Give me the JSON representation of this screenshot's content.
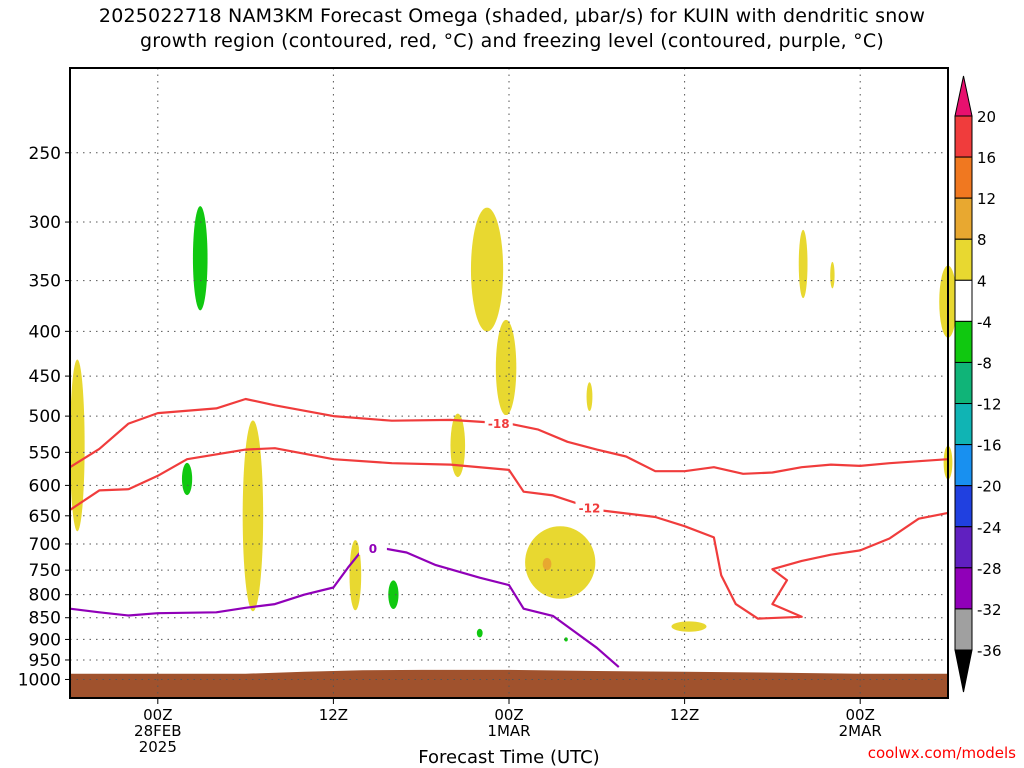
{
  "title_line1": "2025022718 NAM3KM Forecast Omega (shaded, µbar/s) for KUIN with dendritic snow",
  "title_line2": "growth region (contoured, red, °C) and freezing level (contoured, purple, °C)",
  "credit": "coolwx.com/models",
  "chart_data": {
    "type": "heatmap",
    "xlabel": "Forecast Time (UTC)",
    "x_range_hours": [
      -6,
      54
    ],
    "x_ticks": [
      {
        "hour": 0,
        "lines": [
          "00Z",
          "28FEB",
          "2025"
        ]
      },
      {
        "hour": 12,
        "lines": [
          "12Z"
        ]
      },
      {
        "hour": 24,
        "lines": [
          "00Z",
          "1MAR"
        ]
      },
      {
        "hour": 36,
        "lines": [
          "12Z"
        ]
      },
      {
        "hour": 48,
        "lines": [
          "00Z",
          "2MAR"
        ]
      }
    ],
    "y_scale": "log-pressure",
    "y_range_hpa": [
      1050,
      200
    ],
    "y_ticks": [
      250,
      300,
      350,
      400,
      450,
      500,
      550,
      600,
      650,
      700,
      750,
      800,
      850,
      900,
      950,
      1000
    ],
    "colorbar": {
      "labels": [
        "20",
        "16",
        "12",
        "8",
        "4",
        "-4",
        "-8",
        "-12",
        "-16",
        "-20",
        "-24",
        "-28",
        "-32",
        "-36"
      ],
      "colors": [
        "#e8106e",
        "#f03c3c",
        "#f07820",
        "#e8a830",
        "#e8d830",
        "#ffffff",
        "#10c810",
        "#10b478",
        "#10b4b4",
        "#1890f0",
        "#2040e0",
        "#6020c0",
        "#9000b8",
        "#a0a0a0",
        "#000000"
      ]
    },
    "contours": [
      {
        "label": "-18",
        "color": "#f03c3c",
        "label_hour": 23.3,
        "points": [
          [
            -6,
            572
          ],
          [
            -4,
            545
          ],
          [
            -2,
            510
          ],
          [
            0,
            496
          ],
          [
            4,
            490
          ],
          [
            6,
            478
          ],
          [
            8,
            486
          ],
          [
            12,
            500
          ],
          [
            16,
            506
          ],
          [
            20,
            505
          ],
          [
            24,
            510
          ],
          [
            26,
            518
          ],
          [
            28,
            535
          ],
          [
            30,
            546
          ],
          [
            32,
            556
          ],
          [
            34,
            578
          ],
          [
            36,
            578
          ],
          [
            38,
            572
          ],
          [
            40,
            582
          ],
          [
            42,
            580
          ],
          [
            44,
            572
          ],
          [
            46,
            568
          ],
          [
            48,
            570
          ],
          [
            50,
            566
          ],
          [
            54,
            560
          ]
        ]
      },
      {
        "label": "-12",
        "color": "#f03c3c",
        "label_hour": 29.5,
        "points": [
          [
            -6,
            640
          ],
          [
            -4,
            608
          ],
          [
            -2,
            606
          ],
          [
            0,
            585
          ],
          [
            2,
            560
          ],
          [
            6,
            546
          ],
          [
            8,
            544
          ],
          [
            12,
            560
          ],
          [
            16,
            566
          ],
          [
            20,
            568
          ],
          [
            24,
            576
          ],
          [
            25,
            610
          ],
          [
            27,
            616
          ],
          [
            30,
            640
          ],
          [
            34,
            652
          ],
          [
            36,
            668
          ],
          [
            38,
            688
          ],
          [
            38.5,
            760
          ],
          [
            39.5,
            820
          ],
          [
            41,
            852
          ],
          [
            44,
            848
          ],
          [
            42,
            820
          ],
          [
            43,
            770
          ],
          [
            42,
            748
          ],
          [
            44,
            732
          ],
          [
            46,
            720
          ],
          [
            48,
            712
          ],
          [
            50,
            690
          ],
          [
            52,
            655
          ],
          [
            54,
            645
          ]
        ]
      },
      {
        "label": "0",
        "color": "#9000b8",
        "label_hour": 14.7,
        "points": [
          [
            -6,
            830
          ],
          [
            -4,
            838
          ],
          [
            -2,
            845
          ],
          [
            0,
            840
          ],
          [
            4,
            838
          ],
          [
            6,
            828
          ],
          [
            8,
            820
          ],
          [
            10,
            800
          ],
          [
            12,
            785
          ],
          [
            13,
            745
          ],
          [
            14,
            710
          ],
          [
            15,
            706
          ],
          [
            17,
            716
          ],
          [
            19,
            740
          ],
          [
            22,
            765
          ],
          [
            24,
            780
          ],
          [
            25,
            830
          ],
          [
            27,
            846
          ],
          [
            30,
            920
          ],
          [
            31.5,
            968
          ]
        ]
      }
    ],
    "omega_regions": [
      {
        "value": 5,
        "center": [
          -5.5,
          540
        ],
        "rx_hours": 0.5,
        "ry_hpa": 120
      },
      {
        "value": 5,
        "center": [
          6.5,
          650
        ],
        "rx_hours": 0.7,
        "ry_hpa": 160
      },
      {
        "value": 5,
        "center": [
          13.5,
          760
        ],
        "rx_hours": 0.4,
        "ry_hpa": 70
      },
      {
        "value": 5,
        "center": [
          20.5,
          540
        ],
        "rx_hours": 0.5,
        "ry_hpa": 45
      },
      {
        "value": 5,
        "center": [
          22.5,
          340
        ],
        "rx_hours": 1.1,
        "ry_hpa": 55
      },
      {
        "value": 5,
        "center": [
          23.8,
          440
        ],
        "rx_hours": 0.7,
        "ry_hpa": 55
      },
      {
        "value": 5,
        "center": [
          27.5,
          735
        ],
        "rx_hours": 2.4,
        "ry_hpa": 70
      },
      {
        "value": 10,
        "center": [
          26.6,
          738
        ],
        "rx_hours": 0.3,
        "ry_hpa": 12
      },
      {
        "value": 5,
        "center": [
          29.5,
          475
        ],
        "rx_hours": 0.2,
        "ry_hpa": 18
      },
      {
        "value": 5,
        "center": [
          36.3,
          870
        ],
        "rx_hours": 1.2,
        "ry_hpa": 12
      },
      {
        "value": 5,
        "center": [
          44.1,
          335
        ],
        "rx_hours": 0.3,
        "ry_hpa": 30
      },
      {
        "value": 5,
        "center": [
          46.1,
          345
        ],
        "rx_hours": 0.15,
        "ry_hpa": 12
      },
      {
        "value": 5,
        "center": [
          54,
          370
        ],
        "rx_hours": 0.6,
        "ry_hpa": 35
      },
      {
        "value": 5,
        "center": [
          54,
          565
        ],
        "rx_hours": 0.3,
        "ry_hpa": 25
      },
      {
        "value": -6,
        "center": [
          2.9,
          330
        ],
        "rx_hours": 0.5,
        "ry_hpa": 45
      },
      {
        "value": -6,
        "center": [
          2.0,
          590
        ],
        "rx_hours": 0.35,
        "ry_hpa": 25
      },
      {
        "value": -6,
        "center": [
          16.1,
          800
        ],
        "rx_hours": 0.35,
        "ry_hpa": 30
      },
      {
        "value": -6,
        "center": [
          22.0,
          885
        ],
        "rx_hours": 0.2,
        "ry_hpa": 10
      },
      {
        "value": -6,
        "center": [
          27.9,
          900
        ],
        "rx_hours": 0.12,
        "ry_hpa": 5
      }
    ],
    "terrain": {
      "color": "#a0522d",
      "top_hpa": [
        [
          -6,
          985
        ],
        [
          0,
          985
        ],
        [
          6,
          985
        ],
        [
          10,
          980
        ],
        [
          14,
          976
        ],
        [
          18,
          975
        ],
        [
          24,
          975
        ],
        [
          30,
          978
        ],
        [
          36,
          980
        ],
        [
          42,
          982
        ],
        [
          48,
          985
        ],
        [
          54,
          985
        ]
      ]
    }
  }
}
